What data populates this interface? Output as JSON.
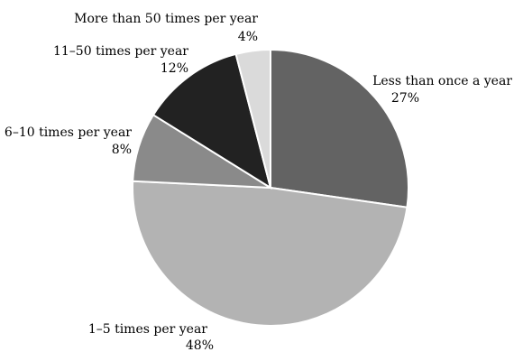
{
  "chart_data": {
    "type": "pie",
    "title": "",
    "slices": [
      {
        "label": "Less than once a year",
        "value": 27,
        "value_text": "27%",
        "color": "#636363"
      },
      {
        "label": "1–5 times per year",
        "value": 48,
        "value_text": "48%",
        "color": "#b3b3b3"
      },
      {
        "label": "6–10 times per year",
        "value": 8,
        "value_text": "8%",
        "color": "#8a8a8a"
      },
      {
        "label": "11–50 times per year",
        "value": 12,
        "value_text": "12%",
        "color": "#222222"
      },
      {
        "label": "More than 50 times per year",
        "value": 4,
        "value_text": "4%",
        "color": "#dadada"
      }
    ],
    "start": "12 o'clock",
    "direction": "clockwise",
    "legend": "none"
  }
}
